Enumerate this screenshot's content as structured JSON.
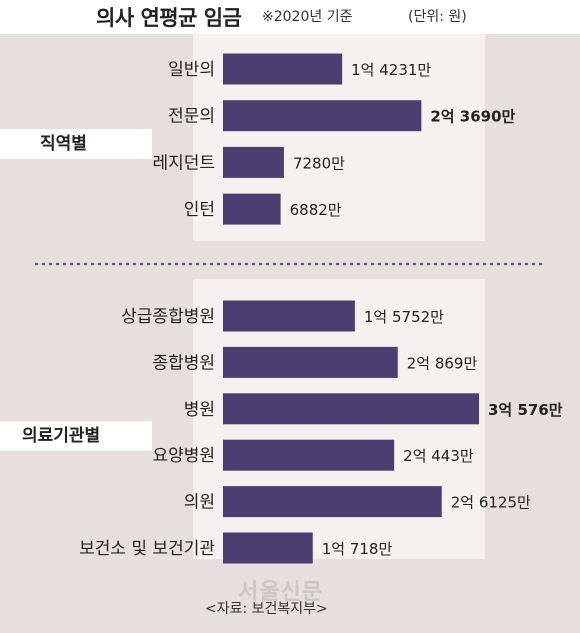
{
  "header": {
    "title": "의사 연평균 임금",
    "basis": "※2020년 기준",
    "unit": "(단위: 원)"
  },
  "groups": [
    {
      "label": "직역별"
    },
    {
      "label": "의료기관별"
    }
  ],
  "chart_data": {
    "type": "bar",
    "orientation": "horizontal",
    "title": "의사 연평균 임금",
    "unit": "원",
    "grid": false,
    "groups": [
      {
        "name": "직역별",
        "categories": [
          "일반의",
          "전문의",
          "레지던트",
          "인턴"
        ],
        "values": [
          142310000,
          236900000,
          72800000,
          68820000
        ],
        "labels": [
          "1억 4231만",
          "2억 3690만",
          "7280만",
          "6882만"
        ],
        "highlighted": [
          false,
          true,
          false,
          false
        ]
      },
      {
        "name": "의료기관별",
        "categories": [
          "상급종합병원",
          "종합병원",
          "병원",
          "요양병원",
          "의원",
          "보건소 및 보건기관"
        ],
        "values": [
          157520000,
          208690000,
          305760000,
          204430000,
          261250000,
          107180000
        ],
        "labels": [
          "1억 5752만",
          "2억 869만",
          "3억 576만",
          "2억 443만",
          "2억 6125만",
          "1억 718만"
        ],
        "highlighted": [
          false,
          false,
          true,
          false,
          false,
          false
        ]
      }
    ],
    "colors": {
      "bar": "#4a3f70",
      "panel": "#f5f1ee"
    }
  },
  "footer": {
    "source": "<자료: 보건복지부>",
    "watermark": "서울신문"
  }
}
